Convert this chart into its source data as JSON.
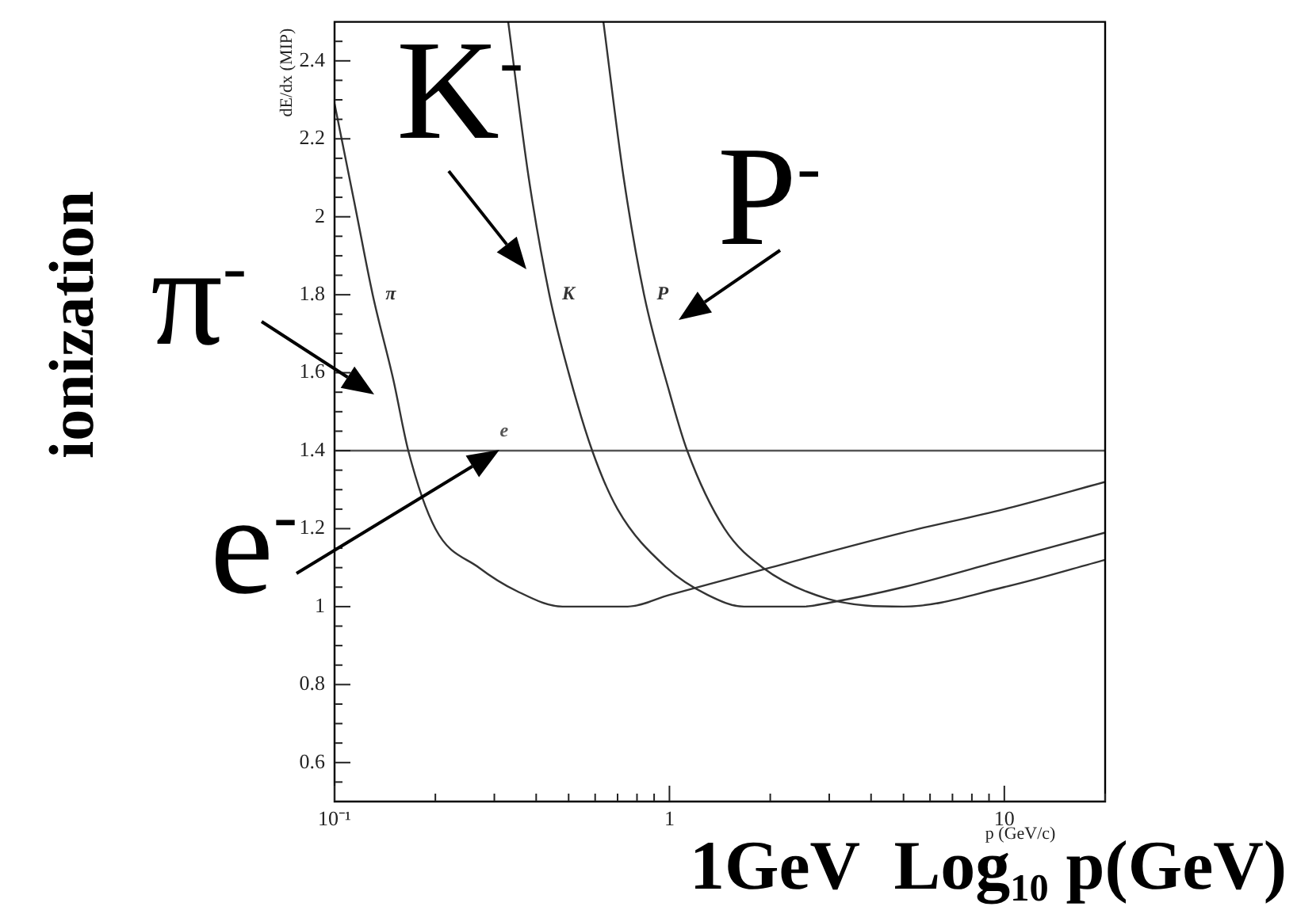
{
  "chart_data": {
    "type": "line",
    "xlabel": "p (GeV/c)",
    "ylabel": "dE/dx (MIP)",
    "log": "x",
    "xlim": [
      0.1,
      20
    ],
    "xticks": [
      {
        "value": 0.1,
        "label": "10⁻¹"
      },
      {
        "value": 0.2,
        "label": null
      },
      {
        "value": 0.3,
        "label": null
      },
      {
        "value": 0.4,
        "label": null
      },
      {
        "value": 0.5,
        "label": null
      },
      {
        "value": 0.6,
        "label": null
      },
      {
        "value": 0.7,
        "label": null
      },
      {
        "value": 0.8,
        "label": null
      },
      {
        "value": 0.9,
        "label": null
      },
      1,
      {
        "value": 2,
        "label": null
      },
      {
        "value": 3,
        "label": null
      },
      {
        "value": 4,
        "label": null
      },
      {
        "value": 5,
        "label": null
      },
      {
        "value": 6,
        "label": null
      },
      {
        "value": 7,
        "label": null
      },
      {
        "value": 8,
        "label": null
      },
      {
        "value": 9,
        "label": null
      },
      10,
      {
        "value": 20,
        "label": null
      }
    ],
    "ylim": [
      0.5,
      2.5
    ],
    "yticks": [
      {
        "value": 0.55,
        "label": null
      },
      0.6,
      {
        "value": 0.65,
        "label": null
      },
      {
        "value": 0.7,
        "label": null
      },
      {
        "value": 0.75,
        "label": null
      },
      0.8,
      {
        "value": 0.85,
        "label": null
      },
      {
        "value": 0.9,
        "label": null
      },
      {
        "value": 0.95,
        "label": null
      },
      1,
      {
        "value": 1.05,
        "label": null
      },
      {
        "value": 1.1,
        "label": null
      },
      {
        "value": 1.15,
        "label": null
      },
      1.2,
      {
        "value": 1.25,
        "label": null
      },
      {
        "value": 1.3,
        "label": null
      },
      {
        "value": 1.35,
        "label": null
      },
      1.4,
      {
        "value": 1.45,
        "label": null
      },
      {
        "value": 1.5,
        "label": null
      },
      {
        "value": 1.55,
        "label": null
      },
      1.6,
      {
        "value": 1.65,
        "label": null
      },
      {
        "value": 1.7,
        "label": null
      },
      {
        "value": 1.75,
        "label": null
      },
      1.8,
      {
        "value": 1.85,
        "label": null
      },
      {
        "value": 1.9,
        "label": null
      },
      {
        "value": 1.95,
        "label": null
      },
      2,
      {
        "value": 2.05,
        "label": null
      },
      {
        "value": 2.1,
        "label": null
      },
      {
        "value": 2.15,
        "label": null
      },
      2.2,
      {
        "value": 2.25,
        "label": null
      },
      {
        "value": 2.3,
        "label": null
      },
      {
        "value": 2.35,
        "label": null
      },
      2.4,
      {
        "value": 2.45,
        "label": null
      }
    ],
    "grid": false,
    "legend": false,
    "series": [
      {
        "name": "π",
        "color": "#333333",
        "x": [
          0.1,
          0.115,
          0.13,
          0.15,
          0.166,
          0.2,
          0.27,
          0.35,
          0.48,
          0.75,
          1,
          2,
          5,
          10,
          20
        ],
        "values": [
          2.29,
          2.03,
          1.8,
          1.58,
          1.4,
          1.2,
          1.1,
          1.04,
          1.0,
          1.0,
          1.03,
          1.1,
          1.19,
          1.25,
          1.32
        ]
      },
      {
        "name": "K",
        "color": "#333333",
        "x": [
          0.33,
          0.38,
          0.438,
          0.5,
          0.588,
          0.7,
          0.98,
          1.3,
          1.67,
          2.5,
          3,
          5,
          10,
          20
        ],
        "values": [
          2.5,
          2.1,
          1.8,
          1.6,
          1.4,
          1.25,
          1.1,
          1.03,
          1.0,
          1.0,
          1.01,
          1.05,
          1.12,
          1.19
        ]
      },
      {
        "name": "P",
        "color": "#333333",
        "x": [
          0.635,
          0.73,
          0.84,
          1.0,
          1.13,
          1.46,
          1.9,
          2.97,
          5,
          10,
          20
        ],
        "values": [
          2.5,
          2.1,
          1.8,
          1.55,
          1.4,
          1.2,
          1.1,
          1.02,
          1.0,
          1.05,
          1.12
        ]
      },
      {
        "name": "e",
        "color": "#555555",
        "x": [
          0.1,
          20
        ],
        "values": [
          1.4,
          1.4
        ]
      }
    ],
    "annotations": [
      "K$^{-}$",
      "P$^{-}$",
      "π$^{-}$",
      "e$^{-}$",
      "ionization",
      "1GeV  Log$_{10}$ p(GeV)"
    ]
  }
}
